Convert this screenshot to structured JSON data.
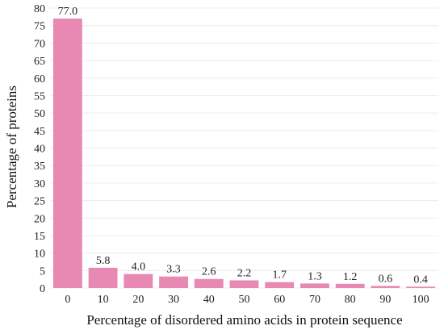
{
  "chart_data": {
    "type": "bar",
    "categories": [
      "0",
      "10",
      "20",
      "30",
      "40",
      "50",
      "60",
      "70",
      "80",
      "90",
      "100"
    ],
    "values": [
      77.0,
      5.8,
      4.0,
      3.3,
      2.6,
      2.2,
      1.7,
      1.3,
      1.2,
      0.6,
      0.4
    ],
    "data_labels": [
      "77.0",
      "5.8",
      "4.0",
      "3.3",
      "2.6",
      "2.2",
      "1.7",
      "1.3",
      "1.2",
      "0.6",
      "0.4"
    ],
    "xlabel": "Percentage of disordered amino acids in protein sequence",
    "ylabel": "Percentage of proteins",
    "ylim": [
      0,
      80
    ],
    "yticks": [
      0,
      5,
      10,
      15,
      20,
      25,
      30,
      35,
      40,
      45,
      50,
      55,
      60,
      65,
      70,
      75,
      80
    ],
    "grid": true,
    "bar_color": "#e889b4",
    "grid_color": "#ececec"
  }
}
